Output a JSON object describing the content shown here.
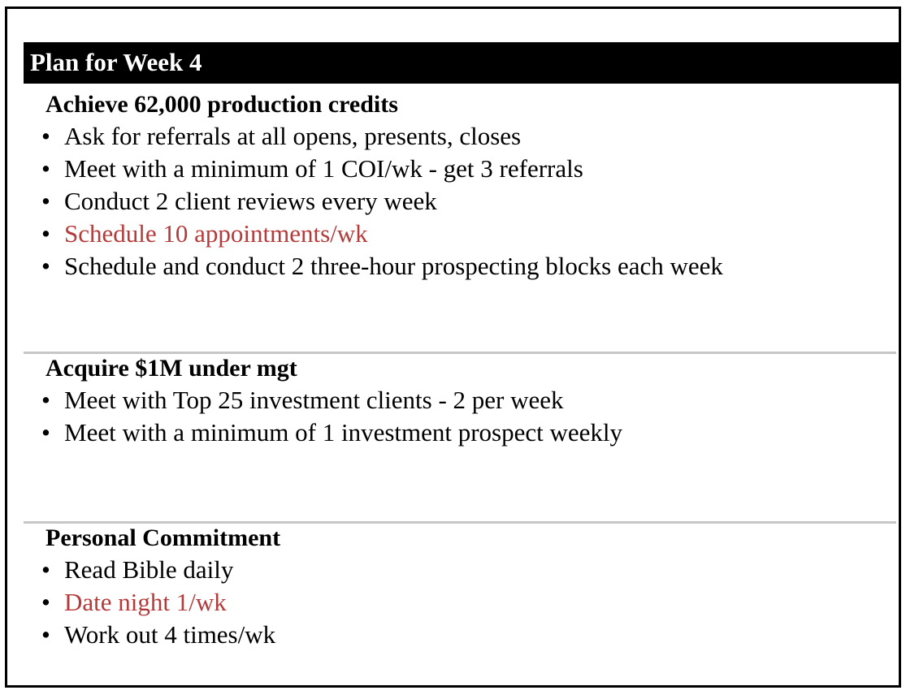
{
  "plan": {
    "title": "Plan for Week 4",
    "bullet_glyph": "•",
    "highlight_color": "#b53a3a",
    "sections": [
      {
        "heading": "Achieve 62,000 production credits",
        "items": [
          {
            "text": "Ask for referrals at all opens, presents, closes",
            "highlighted": false
          },
          {
            "text": "Meet with a minimum of 1 COI/wk - get 3 referrals",
            "highlighted": false
          },
          {
            "text": "Conduct 2 client reviews every week",
            "highlighted": false
          },
          {
            "text": "Schedule 10 appointments/wk",
            "highlighted": true
          },
          {
            "text": "Schedule and conduct 2 three-hour prospecting blocks each week",
            "highlighted": false
          }
        ]
      },
      {
        "heading": "Acquire $1M under mgt",
        "items": [
          {
            "text": "Meet with Top 25 investment clients - 2 per week",
            "highlighted": false
          },
          {
            "text": "Meet with a minimum of 1 investment prospect weekly",
            "highlighted": false
          }
        ]
      },
      {
        "heading": "Personal Commitment",
        "items": [
          {
            "text": "Read Bible daily",
            "highlighted": false
          },
          {
            "text": "Date night 1/wk",
            "highlighted": true
          },
          {
            "text": "Work out 4 times/wk",
            "highlighted": false
          }
        ]
      }
    ]
  }
}
